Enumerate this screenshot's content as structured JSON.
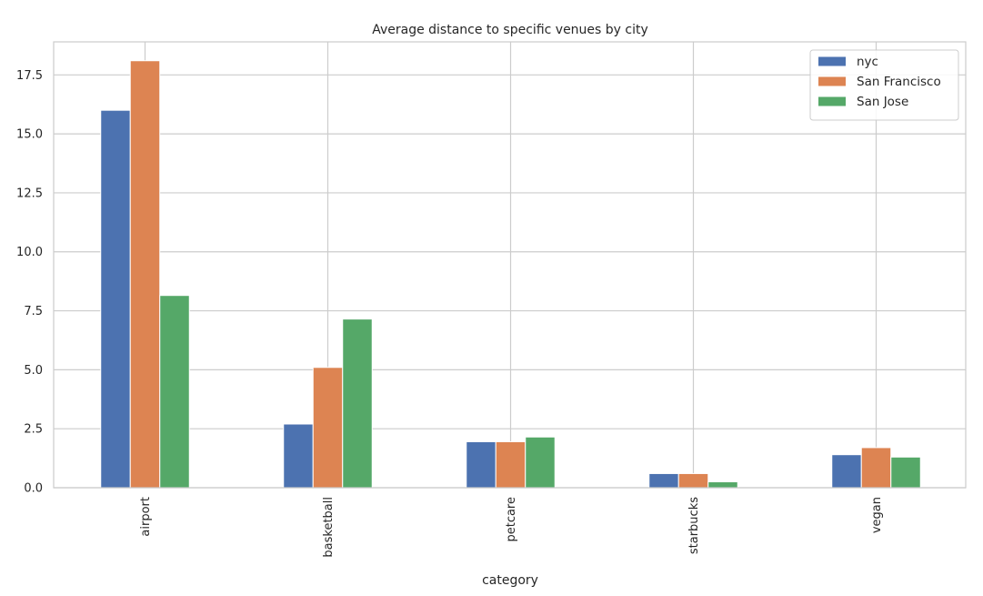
{
  "chart_data": {
    "type": "bar",
    "title": "Average distance to specific venues by city",
    "xlabel": "category",
    "ylabel": "",
    "categories": [
      "airport",
      "basketball",
      "petcare",
      "starbucks",
      "vegan"
    ],
    "series": [
      {
        "name": "nyc",
        "color": "#4c72b0",
        "values": [
          16.0,
          2.7,
          1.95,
          0.6,
          1.4
        ]
      },
      {
        "name": "San Francisco",
        "color": "#dd8452",
        "values": [
          18.1,
          5.1,
          1.95,
          0.6,
          1.7
        ]
      },
      {
        "name": "San Jose",
        "color": "#55a868",
        "values": [
          8.15,
          7.15,
          2.15,
          0.25,
          1.3
        ]
      }
    ],
    "ylim": [
      0,
      18.9
    ],
    "yticks": [
      0.0,
      2.5,
      5.0,
      7.5,
      10.0,
      12.5,
      15.0,
      17.5
    ],
    "ytick_labels": [
      "0.0",
      "2.5",
      "5.0",
      "7.5",
      "10.0",
      "12.5",
      "15.0",
      "17.5"
    ],
    "grid": true,
    "legend_position": "top-right",
    "xtick_rotation": "vertical"
  }
}
